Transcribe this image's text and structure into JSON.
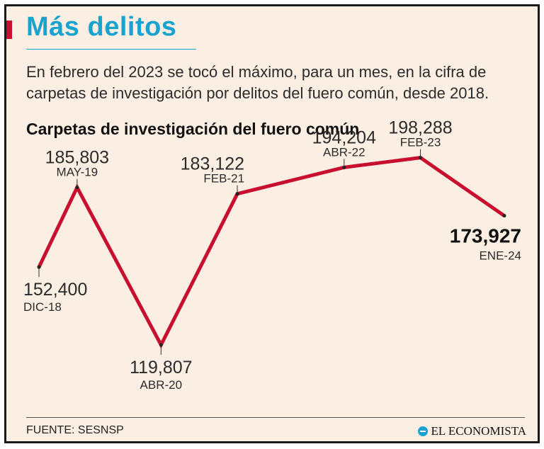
{
  "header": {
    "title": "Más delitos",
    "subtitle": "En febrero del 2023 se tocó el máximo, para un mes, en la cifra de carpetas de investigación por delitos del fuero común, desde 2018."
  },
  "colors": {
    "title": "#1aa3cf",
    "accent": "#c8102e",
    "line": "#c8102e",
    "background": "#fbeee2"
  },
  "chart_data": {
    "type": "line",
    "title": "Carpetas de investigación del fuero común",
    "xlabel": "",
    "ylabel": "",
    "grid": false,
    "ylim": [
      110000,
      205000
    ],
    "categories": [
      "DIC-18",
      "MAY-19",
      "ABR-20",
      "FEB-21",
      "ABR-22",
      "FEB-23",
      "ENE-24"
    ],
    "x": [
      "2018-12",
      "2019-05",
      "2020-04",
      "2021-02",
      "2022-04",
      "2023-02",
      "2024-01"
    ],
    "values": [
      152400,
      185803,
      119807,
      183122,
      194204,
      198288,
      173927
    ],
    "value_labels": [
      "152,400",
      "185,803",
      "119,807",
      "183,122",
      "194,204",
      "198,288",
      "173,927"
    ],
    "highlight_index": 6
  },
  "footer": {
    "source": "FUENTE: SESNSP",
    "brand": "EL ECONOMISTA",
    "brand_icon": "el-economista-logo-icon"
  }
}
